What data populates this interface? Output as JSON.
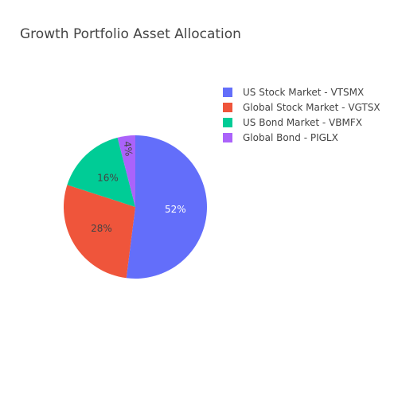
{
  "chart_data": {
    "type": "pie",
    "title": "Growth Portfolio Asset Allocation",
    "labels": [
      "US Stock Market - VTSMX",
      "Global Stock Market - VGTSX",
      "US Bond Market - VBMFX",
      "Global Bond - PIGLX"
    ],
    "values": [
      52,
      28,
      16,
      4
    ],
    "slice_labels": [
      "52%",
      "28%",
      "16%",
      "4%"
    ],
    "colors": [
      "#636efa",
      "#EF553B",
      "#00cc96",
      "#ab63fa"
    ],
    "label_colors": [
      "#ffffff",
      "#444444",
      "#444444",
      "#444444"
    ],
    "legend_position": "top-right",
    "start": "top",
    "direction": "clockwise"
  }
}
